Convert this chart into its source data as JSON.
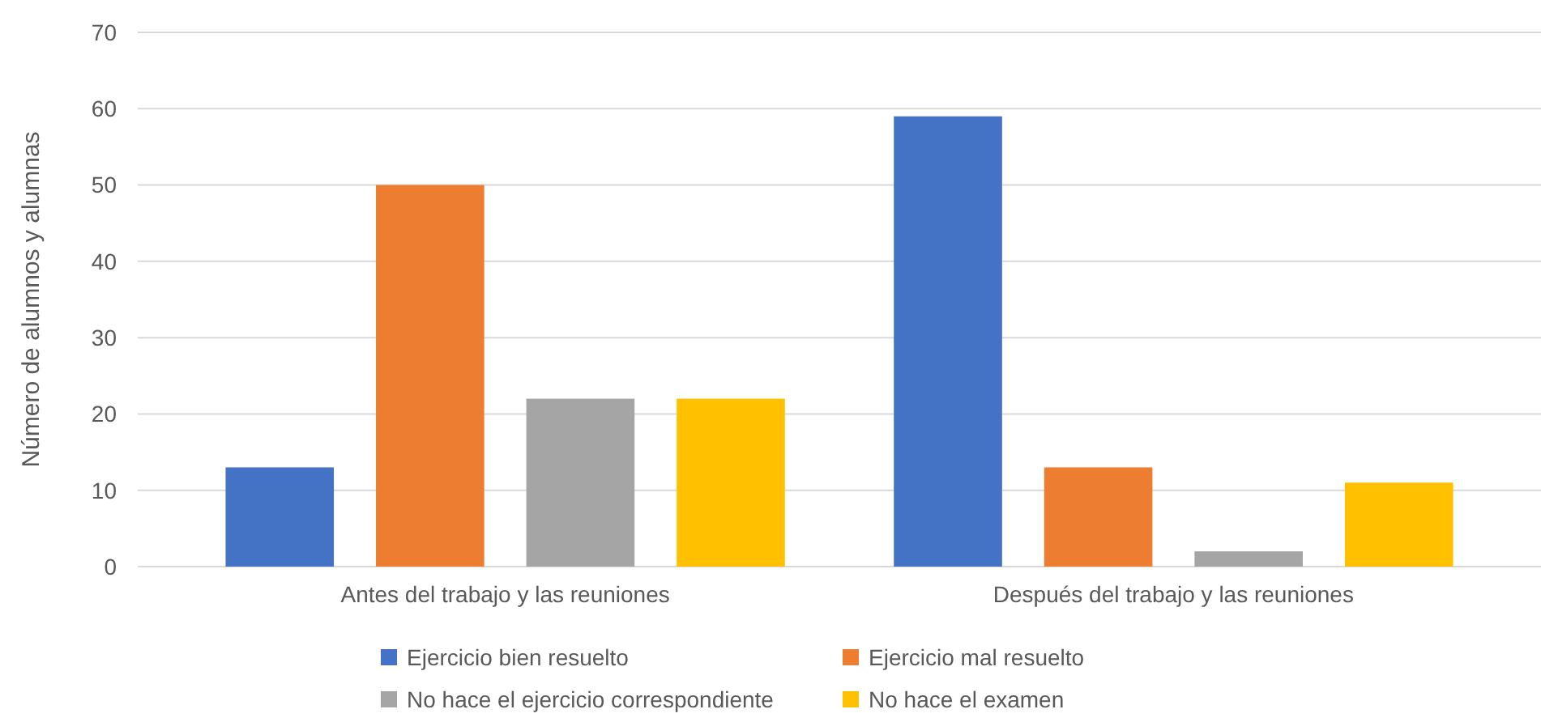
{
  "chart_data": {
    "type": "bar",
    "ylabel": "Número de alumnos y alumnas",
    "categories": [
      "Antes del trabajo y las reuniones",
      "Después del trabajo y las reuniones"
    ],
    "series": [
      {
        "name": "Ejercicio bien resuelto",
        "color": "#4472c4",
        "values": [
          13,
          59
        ]
      },
      {
        "name": "Ejercicio mal resuelto",
        "color": "#ed7d31",
        "values": [
          50,
          13
        ]
      },
      {
        "name": "No hace el ejercicio correspondiente",
        "color": "#a5a5a5",
        "values": [
          22,
          2
        ]
      },
      {
        "name": "No hace el examen",
        "color": "#ffc000",
        "values": [
          22,
          11
        ]
      }
    ],
    "ylim": [
      0,
      70
    ],
    "yticks": [
      0,
      10,
      20,
      30,
      40,
      50,
      60,
      70
    ],
    "grid": "y",
    "legend": "bottom"
  }
}
